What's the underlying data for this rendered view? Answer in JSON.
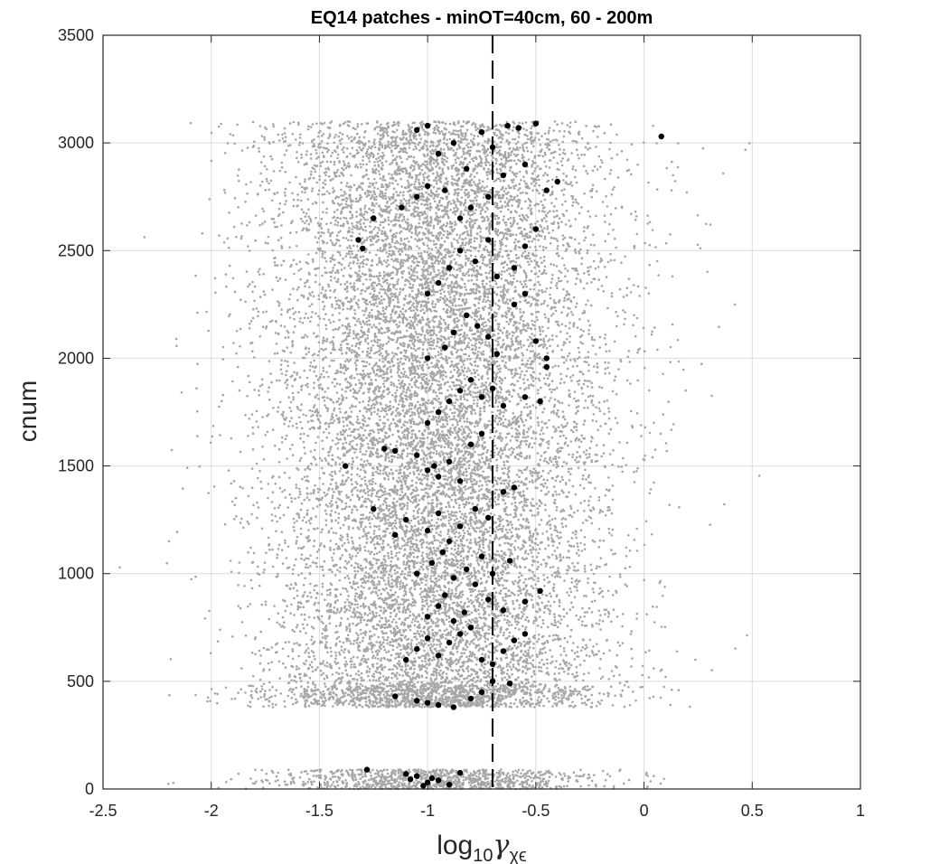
{
  "chart_data": {
    "type": "scatter",
    "title": "EQ14 patches - minOT=40cm, 60 - 200m",
    "xlabel": {
      "text": "log",
      "subscript": "10",
      "symbol": "γ",
      "symbol_subscript": "χϵ"
    },
    "ylabel": "cnum",
    "xlim": [
      -2.5,
      1
    ],
    "ylim": [
      0,
      3500
    ],
    "xticks": [
      -2.5,
      -2,
      -1.5,
      -1,
      -0.5,
      0,
      0.5,
      1
    ],
    "xtick_labels": [
      "-2.5",
      "-2",
      "-1.5",
      "-1",
      "-0.5",
      "0",
      "0.5",
      "1"
    ],
    "yticks": [
      0,
      500,
      1000,
      1500,
      2000,
      2500,
      3000,
      3500
    ],
    "ytick_labels": [
      "0",
      "500",
      "1000",
      "1500",
      "2000",
      "2500",
      "3000",
      "3500"
    ],
    "grid": true,
    "reference_line": {
      "x": -0.7,
      "style": "dashed",
      "color": "#000000"
    },
    "series": [
      {
        "role": "all patches",
        "color": "#a6a6a6",
        "marker_size": "small",
        "distribution": {
          "center_x": -0.95,
          "spread_x": 0.38,
          "cnum_bands": [
            {
              "range": [
                0,
                90
              ],
              "weight": 6
            },
            {
              "range": [
                380,
                480
              ],
              "weight": 8
            },
            {
              "range": [
                480,
                3100
              ],
              "weight": 86
            }
          ],
          "approx_count": 16000
        }
      },
      {
        "role": "selected patches",
        "color": "#000000",
        "marker_size": "large",
        "points": [
          [
            -1.28,
            90
          ],
          [
            -1.1,
            70
          ],
          [
            -1.05,
            60
          ],
          [
            -0.98,
            50
          ],
          [
            -0.95,
            40
          ],
          [
            -0.85,
            75
          ],
          [
            -1.0,
            30
          ],
          [
            -1.02,
            15
          ],
          [
            -0.9,
            20
          ],
          [
            -1.08,
            45
          ],
          [
            -1.15,
            430
          ],
          [
            -1.05,
            410
          ],
          [
            -1.0,
            400
          ],
          [
            -0.95,
            390
          ],
          [
            -0.88,
            380
          ],
          [
            -0.8,
            420
          ],
          [
            -0.75,
            450
          ],
          [
            -0.7,
            500
          ],
          [
            -0.62,
            490
          ],
          [
            -1.1,
            600
          ],
          [
            -1.05,
            650
          ],
          [
            -1.0,
            700
          ],
          [
            -0.95,
            620
          ],
          [
            -0.9,
            680
          ],
          [
            -0.85,
            720
          ],
          [
            -0.8,
            750
          ],
          [
            -0.75,
            600
          ],
          [
            -0.7,
            580
          ],
          [
            -0.65,
            640
          ],
          [
            -0.6,
            690
          ],
          [
            -0.55,
            720
          ],
          [
            -1.0,
            800
          ],
          [
            -0.95,
            850
          ],
          [
            -0.92,
            900
          ],
          [
            -0.88,
            780
          ],
          [
            -0.83,
            820
          ],
          [
            -0.78,
            950
          ],
          [
            -0.72,
            880
          ],
          [
            -0.65,
            830
          ],
          [
            -0.55,
            870
          ],
          [
            -0.48,
            920
          ],
          [
            -1.05,
            1000
          ],
          [
            -0.98,
            1050
          ],
          [
            -0.93,
            1100
          ],
          [
            -0.88,
            980
          ],
          [
            -0.82,
            1020
          ],
          [
            -0.75,
            1080
          ],
          [
            -0.7,
            1000
          ],
          [
            -0.62,
            1060
          ],
          [
            -1.25,
            1300
          ],
          [
            -1.15,
            1180
          ],
          [
            -1.1,
            1250
          ],
          [
            -1.0,
            1200
          ],
          [
            -0.95,
            1280
          ],
          [
            -0.9,
            1150
          ],
          [
            -0.85,
            1220
          ],
          [
            -0.78,
            1300
          ],
          [
            -0.72,
            1260
          ],
          [
            -0.65,
            1380
          ],
          [
            -0.6,
            1400
          ],
          [
            -1.38,
            1500
          ],
          [
            -1.2,
            1580
          ],
          [
            -1.15,
            1570
          ],
          [
            -1.05,
            1550
          ],
          [
            -1.0,
            1480
          ],
          [
            -0.97,
            1500
          ],
          [
            -0.95,
            1450
          ],
          [
            -0.9,
            1520
          ],
          [
            -0.85,
            1430
          ],
          [
            -0.8,
            1600
          ],
          [
            -0.75,
            1650
          ],
          [
            -1.0,
            1700
          ],
          [
            -0.95,
            1750
          ],
          [
            -0.9,
            1800
          ],
          [
            -0.85,
            1850
          ],
          [
            -0.8,
            1900
          ],
          [
            -0.75,
            1820
          ],
          [
            -0.7,
            1860
          ],
          [
            -0.65,
            1780
          ],
          [
            -0.55,
            1820
          ],
          [
            -0.48,
            1800
          ],
          [
            -0.45,
            1960
          ],
          [
            -1.0,
            2000
          ],
          [
            -0.92,
            2050
          ],
          [
            -0.88,
            2120
          ],
          [
            -0.82,
            2200
          ],
          [
            -0.77,
            2150
          ],
          [
            -0.72,
            2100
          ],
          [
            -0.68,
            2020
          ],
          [
            -0.6,
            2250
          ],
          [
            -0.55,
            2300
          ],
          [
            -0.5,
            2080
          ],
          [
            -0.45,
            2000
          ],
          [
            -1.0,
            2300
          ],
          [
            -0.95,
            2350
          ],
          [
            -0.9,
            2420
          ],
          [
            -0.85,
            2500
          ],
          [
            -0.78,
            2450
          ],
          [
            -0.72,
            2550
          ],
          [
            -0.68,
            2380
          ],
          [
            -0.6,
            2420
          ],
          [
            -0.55,
            2520
          ],
          [
            -0.5,
            2600
          ],
          [
            -1.32,
            2550
          ],
          [
            -1.3,
            2510
          ],
          [
            -1.25,
            2650
          ],
          [
            -1.12,
            2700
          ],
          [
            -1.05,
            2750
          ],
          [
            -1.0,
            2800
          ],
          [
            -0.92,
            2780
          ],
          [
            -0.85,
            2650
          ],
          [
            -0.8,
            2700
          ],
          [
            -0.72,
            2750
          ],
          [
            -0.65,
            2850
          ],
          [
            -0.55,
            2900
          ],
          [
            -0.45,
            2780
          ],
          [
            -1.05,
            3060
          ],
          [
            -1.0,
            3080
          ],
          [
            -0.95,
            2950
          ],
          [
            -0.88,
            3000
          ],
          [
            -0.82,
            2880
          ],
          [
            -0.75,
            3050
          ],
          [
            -0.7,
            2980
          ],
          [
            -0.63,
            3080
          ],
          [
            -0.58,
            3070
          ],
          [
            -0.5,
            3090
          ],
          [
            -0.4,
            2820
          ],
          [
            0.08,
            3030
          ]
        ]
      }
    ]
  }
}
